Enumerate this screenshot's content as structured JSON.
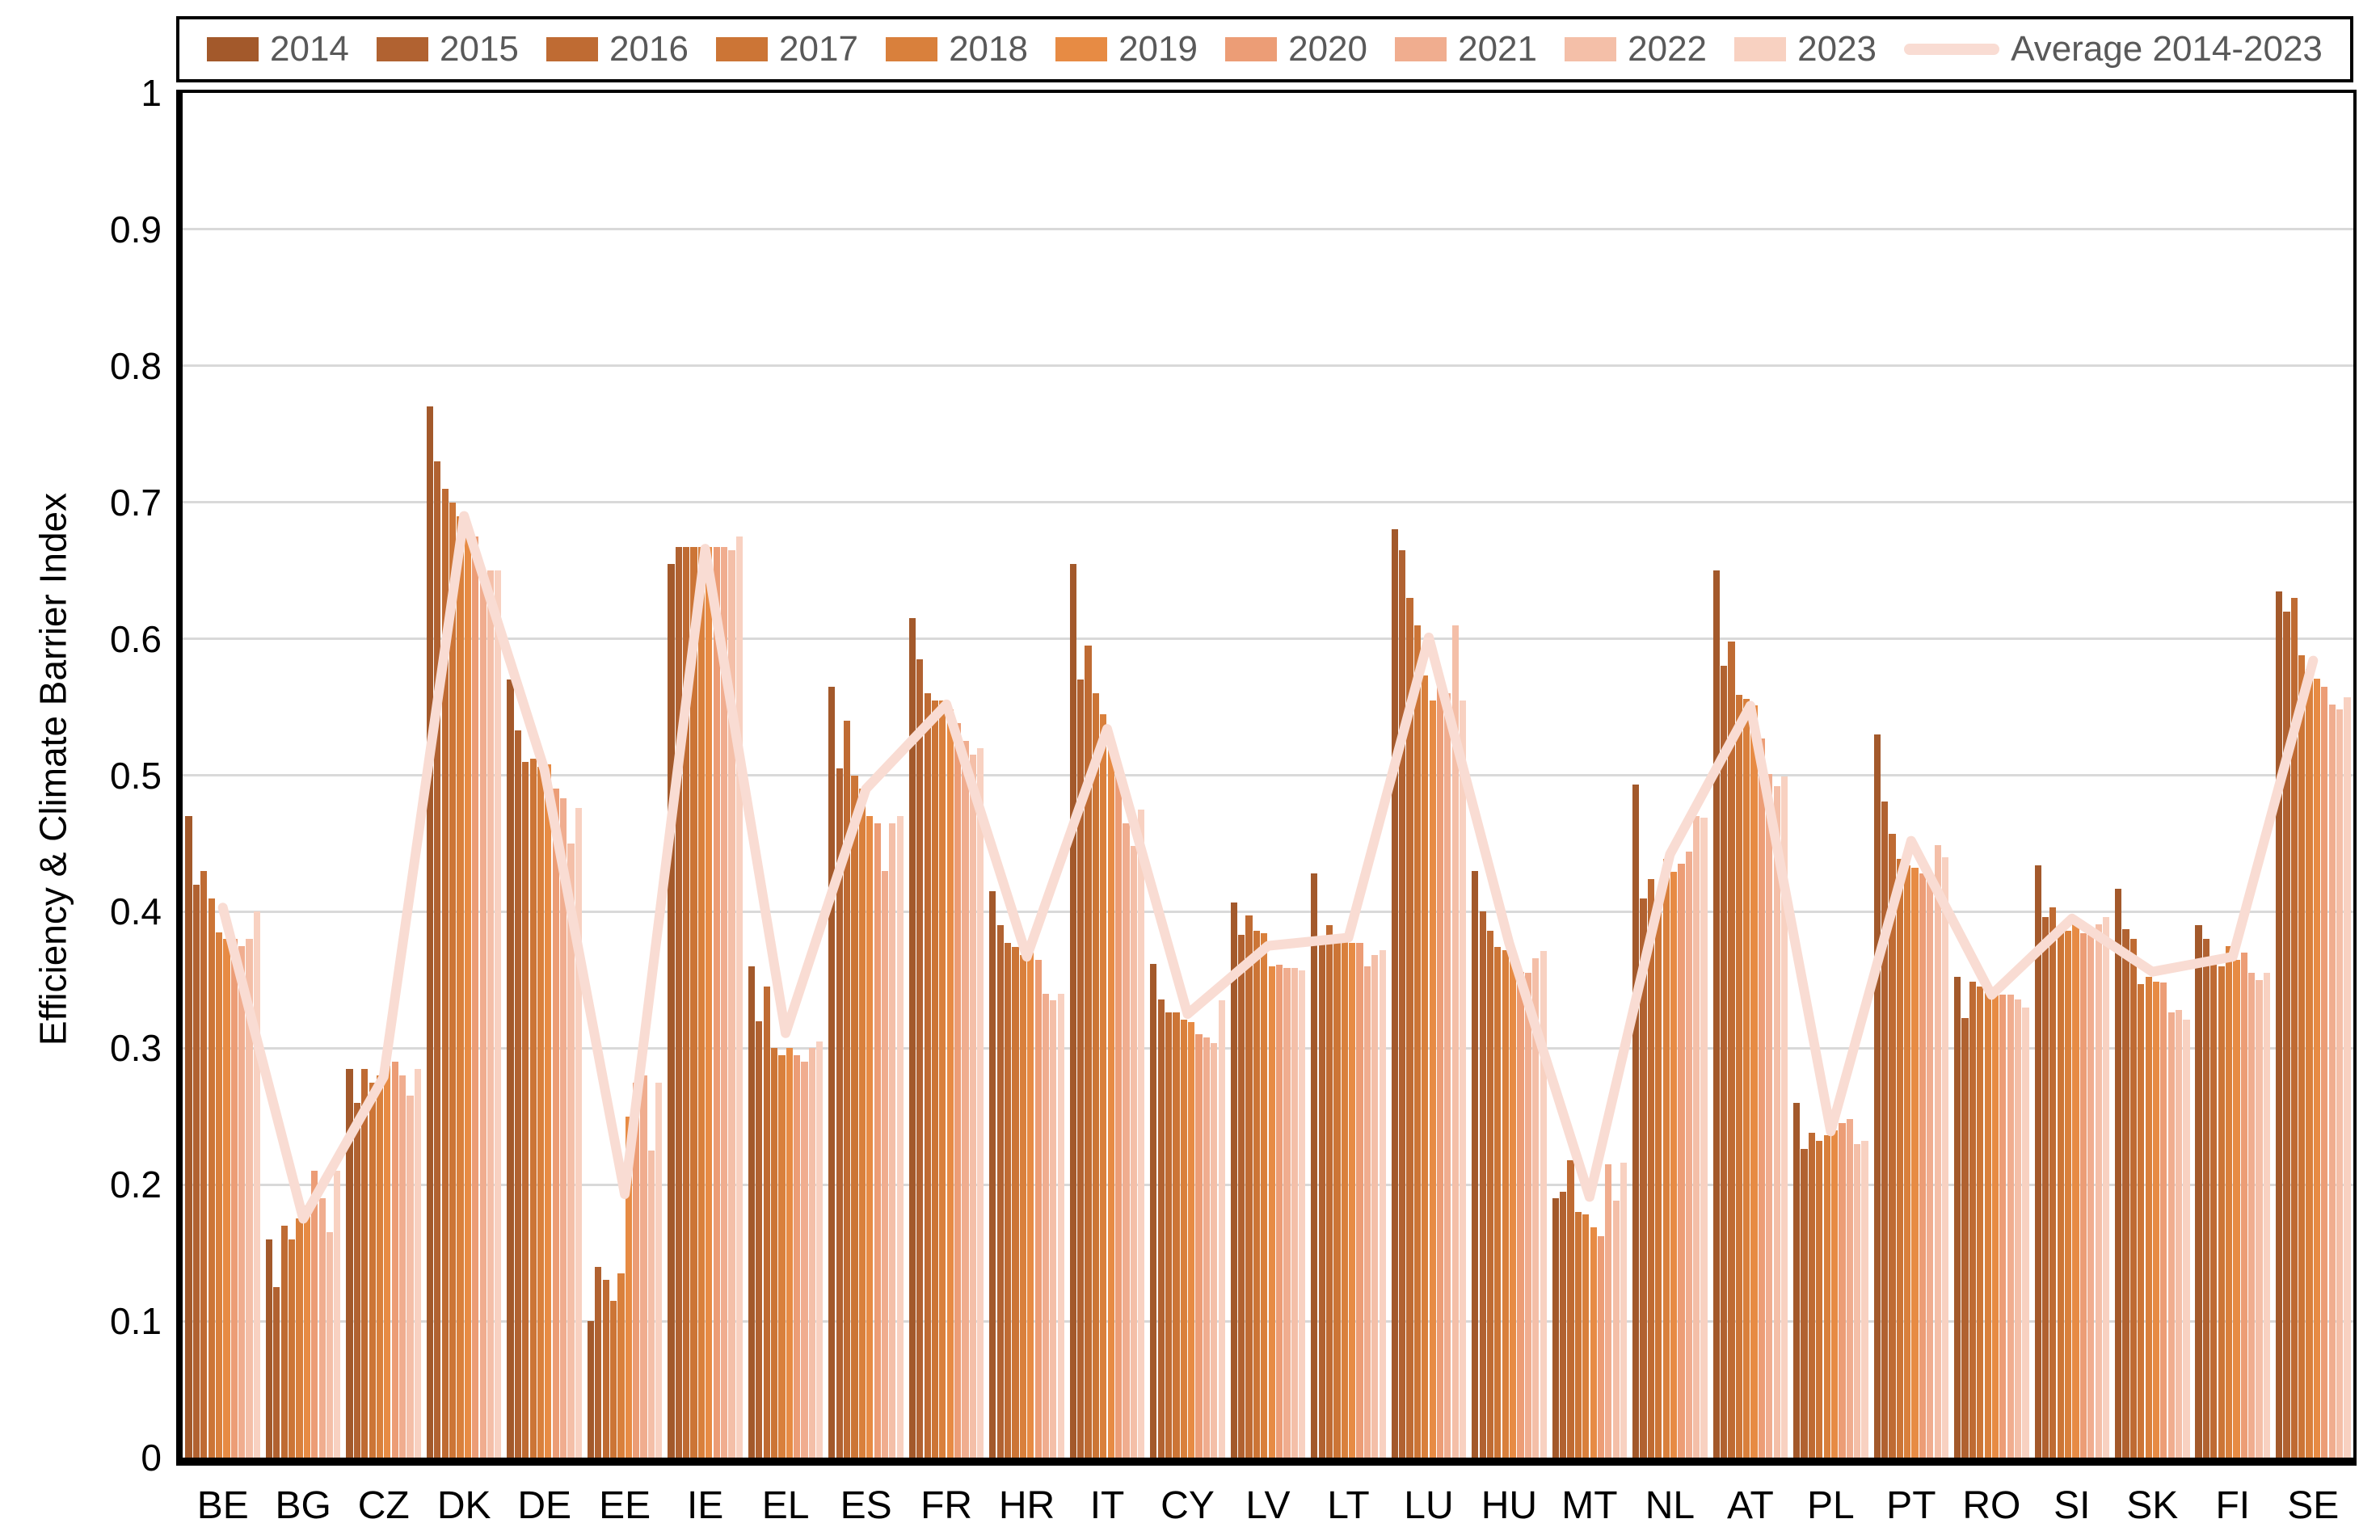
{
  "chart_data": {
    "type": "bar",
    "title": "",
    "xlabel": "",
    "ylabel": "Efficiency & Climate Barrier Index",
    "ylim": [
      0,
      1
    ],
    "ytick_labels": [
      "0",
      "0.1",
      "0.2",
      "0.3",
      "0.4",
      "0.5",
      "0.6",
      "0.7",
      "0.8",
      "0.9",
      "1"
    ],
    "grid": "horizontal",
    "legend_position": "top",
    "legend_text_color": "#595959",
    "categories": [
      "BE",
      "BG",
      "CZ",
      "DK",
      "DE",
      "EE",
      "IE",
      "EL",
      "ES",
      "FR",
      "HR",
      "IT",
      "CY",
      "LV",
      "LT",
      "LU",
      "HU",
      "MT",
      "NL",
      "AT",
      "PL",
      "PT",
      "RO",
      "SI",
      "SK",
      "FI",
      "SE"
    ],
    "series_years": [
      {
        "name": "2014",
        "color": "#A3592B"
      },
      {
        "name": "2015",
        "color": "#B16231"
      },
      {
        "name": "2016",
        "color": "#BF6B33"
      },
      {
        "name": "2017",
        "color": "#CC7536"
      },
      {
        "name": "2018",
        "color": "#D9803C"
      },
      {
        "name": "2019",
        "color": "#E78B44"
      },
      {
        "name": "2020",
        "color": "#EC9D76"
      },
      {
        "name": "2021",
        "color": "#F0AD8F"
      },
      {
        "name": "2022",
        "color": "#F4BFA8"
      },
      {
        "name": "2023",
        "color": "#F8D1C1"
      }
    ],
    "line_series": {
      "name": "Average 2014-2023",
      "color": "#F9DCD3"
    },
    "countries": [
      {
        "code": "BE",
        "values": [
          0.47,
          0.42,
          0.43,
          0.41,
          0.385,
          0.38,
          0.38,
          0.375,
          0.38,
          0.4
        ],
        "average": 0.403
      },
      {
        "code": "BG",
        "values": [
          0.16,
          0.125,
          0.17,
          0.16,
          0.175,
          0.185,
          0.21,
          0.19,
          0.165,
          0.21
        ],
        "average": 0.175
      },
      {
        "code": "CZ",
        "values": [
          0.285,
          0.26,
          0.285,
          0.275,
          0.28,
          0.287,
          0.29,
          0.28,
          0.265,
          0.285
        ],
        "average": 0.279
      },
      {
        "code": "DK",
        "values": [
          0.77,
          0.73,
          0.71,
          0.7,
          0.69,
          0.675,
          0.675,
          0.65,
          0.65,
          0.65
        ],
        "average": 0.69
      },
      {
        "code": "DE",
        "values": [
          0.57,
          0.533,
          0.51,
          0.512,
          0.506,
          0.508,
          0.49,
          0.483,
          0.45,
          0.476
        ],
        "average": 0.504
      },
      {
        "code": "EE",
        "values": [
          0.1,
          0.14,
          0.13,
          0.115,
          0.135,
          0.25,
          0.275,
          0.28,
          0.225,
          0.275
        ],
        "average": 0.193
      },
      {
        "code": "IE",
        "values": [
          0.655,
          0.667,
          0.667,
          0.667,
          0.667,
          0.667,
          0.667,
          0.667,
          0.665,
          0.675
        ],
        "average": 0.666
      },
      {
        "code": "EL",
        "values": [
          0.36,
          0.32,
          0.345,
          0.3,
          0.295,
          0.3,
          0.295,
          0.29,
          0.3,
          0.305
        ],
        "average": 0.311
      },
      {
        "code": "ES",
        "values": [
          0.565,
          0.505,
          0.54,
          0.5,
          0.49,
          0.47,
          0.465,
          0.43,
          0.465,
          0.47
        ],
        "average": 0.49
      },
      {
        "code": "FR",
        "values": [
          0.615,
          0.585,
          0.56,
          0.555,
          0.555,
          0.548,
          0.538,
          0.525,
          0.515,
          0.52
        ],
        "average": 0.552
      },
      {
        "code": "HR",
        "values": [
          0.415,
          0.39,
          0.377,
          0.374,
          0.368,
          0.37,
          0.365,
          0.34,
          0.335,
          0.34
        ],
        "average": 0.367
      },
      {
        "code": "IT",
        "values": [
          0.655,
          0.57,
          0.595,
          0.56,
          0.545,
          0.525,
          0.5,
          0.465,
          0.448,
          0.475
        ],
        "average": 0.534
      },
      {
        "code": "CY",
        "values": [
          0.362,
          0.336,
          0.326,
          0.326,
          0.321,
          0.319,
          0.31,
          0.308,
          0.304,
          0.335
        ],
        "average": 0.325
      },
      {
        "code": "LV",
        "values": [
          0.407,
          0.383,
          0.397,
          0.386,
          0.384,
          0.36,
          0.361,
          0.359,
          0.359,
          0.357
        ],
        "average": 0.375
      },
      {
        "code": "LT",
        "values": [
          0.428,
          0.378,
          0.39,
          0.378,
          0.378,
          0.377,
          0.377,
          0.36,
          0.368,
          0.372
        ],
        "average": 0.381
      },
      {
        "code": "LU",
        "values": [
          0.68,
          0.665,
          0.63,
          0.61,
          0.573,
          0.555,
          0.57,
          0.56,
          0.61,
          0.555
        ],
        "average": 0.601
      },
      {
        "code": "HU",
        "values": [
          0.43,
          0.4,
          0.386,
          0.374,
          0.372,
          0.364,
          0.356,
          0.355,
          0.366,
          0.371
        ],
        "average": 0.377
      },
      {
        "code": "MT",
        "values": [
          0.19,
          0.195,
          0.218,
          0.18,
          0.178,
          0.169,
          0.162,
          0.215,
          0.188,
          0.216
        ],
        "average": 0.191
      },
      {
        "code": "NL",
        "values": [
          0.493,
          0.41,
          0.424,
          0.407,
          0.439,
          0.429,
          0.435,
          0.444,
          0.47,
          0.469
        ],
        "average": 0.442
      },
      {
        "code": "AT",
        "values": [
          0.65,
          0.58,
          0.598,
          0.559,
          0.556,
          0.551,
          0.527,
          0.501,
          0.492,
          0.499
        ],
        "average": 0.551
      },
      {
        "code": "PL",
        "values": [
          0.26,
          0.226,
          0.238,
          0.232,
          0.236,
          0.24,
          0.245,
          0.248,
          0.23,
          0.232
        ],
        "average": 0.239
      },
      {
        "code": "PT",
        "values": [
          0.53,
          0.481,
          0.457,
          0.439,
          0.434,
          0.432,
          0.428,
          0.425,
          0.449,
          0.44
        ],
        "average": 0.452
      },
      {
        "code": "RO",
        "values": [
          0.352,
          0.322,
          0.349,
          0.345,
          0.342,
          0.34,
          0.339,
          0.339,
          0.336,
          0.33
        ],
        "average": 0.339
      },
      {
        "code": "SI",
        "values": [
          0.434,
          0.396,
          0.403,
          0.386,
          0.386,
          0.391,
          0.384,
          0.383,
          0.391,
          0.396
        ],
        "average": 0.395
      },
      {
        "code": "SK",
        "values": [
          0.417,
          0.387,
          0.38,
          0.347,
          0.352,
          0.349,
          0.348,
          0.326,
          0.328,
          0.321
        ],
        "average": 0.356
      },
      {
        "code": "FI",
        "values": [
          0.39,
          0.38,
          0.365,
          0.36,
          0.375,
          0.365,
          0.37,
          0.355,
          0.35,
          0.355
        ],
        "average": 0.367
      },
      {
        "code": "SE",
        "values": [
          0.635,
          0.62,
          0.63,
          0.588,
          0.578,
          0.571,
          0.565,
          0.552,
          0.548,
          0.557
        ],
        "average": 0.584
      }
    ]
  }
}
